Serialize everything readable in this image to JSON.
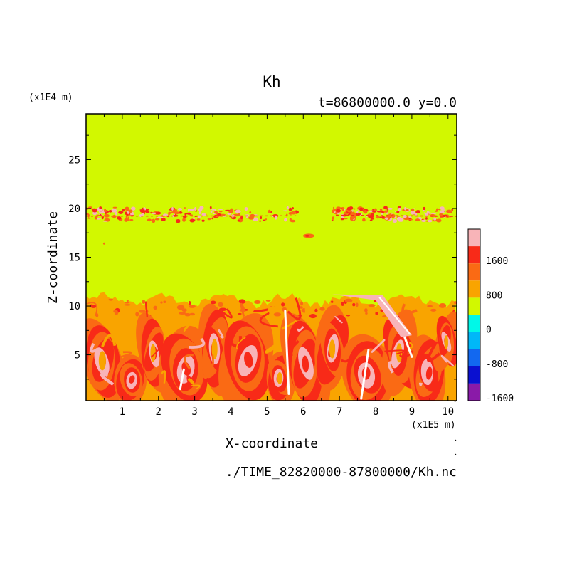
{
  "chart_data": {
    "type": "heatmap",
    "title": "Kh",
    "subtitle": "t=86800000.0 y=0.0",
    "xlabel": "X-coordinate",
    "ylabel": "Z-coordinate",
    "x_unit": "(x1E5 m)",
    "y_unit": "(x1E4 m)",
    "source": "./TIME_82820000-87800000/Kh.nc",
    "xlim": [
      0,
      10.24
    ],
    "ylim": [
      0.3,
      29.7
    ],
    "x_ticks": [
      1,
      2,
      3,
      4,
      5,
      6,
      7,
      8,
      9,
      10
    ],
    "y_ticks": [
      5,
      10,
      15,
      20,
      25
    ],
    "colorbar": {
      "levels": [
        {
          "max_label": "",
          "color": "#f8b4b8"
        },
        {
          "max_label": "1600",
          "color": "#f82a18"
        },
        {
          "max_label": "",
          "color": "#fa6a14"
        },
        {
          "max_label": "800",
          "color": "#f9a400"
        },
        {
          "max_label": "",
          "color": "#d2f800"
        },
        {
          "max_label": "0",
          "color": "#00f8e8"
        },
        {
          "max_label": "",
          "color": "#00b8f8"
        },
        {
          "max_label": "-800",
          "color": "#1268f0"
        },
        {
          "max_label": "",
          "color": "#0a10d0"
        },
        {
          "max_label": "-1600",
          "color": "#8a1aa8"
        }
      ]
    },
    "regions": {
      "background_level": 0,
      "upper_band": {
        "z_range": [
          18.7,
          20.1
        ],
        "gap_x": [
          5.9,
          6.8
        ],
        "level_colors": [
          "#fa6a14",
          "#f82a18",
          "#f8b4b8"
        ]
      },
      "mid_blob": {
        "x": 6.15,
        "z": 17.2
      },
      "turbulent_layer": {
        "z_top": 11,
        "z_bottom": 0.3
      }
    }
  }
}
